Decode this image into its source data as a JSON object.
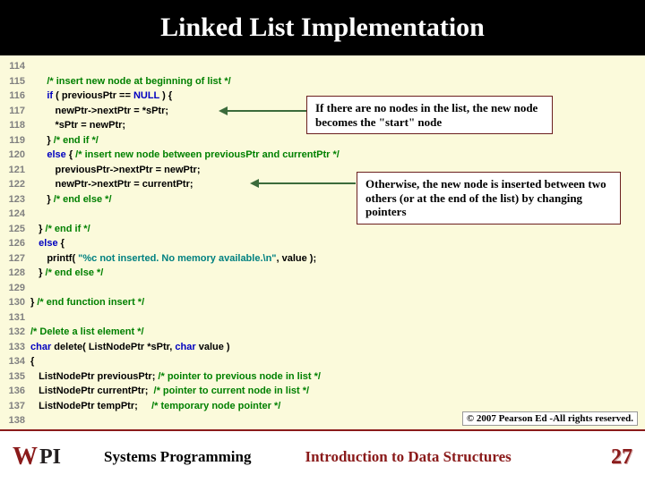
{
  "title": "Linked List Implementation",
  "line_start": 114,
  "line_end": 138,
  "code_lines": [
    {
      "ind": 0,
      "parts": [
        {
          "t": "plain",
          "v": ""
        }
      ]
    },
    {
      "ind": 6,
      "parts": [
        {
          "t": "c",
          "v": "/* insert new node at beginning of list */"
        }
      ]
    },
    {
      "ind": 6,
      "parts": [
        {
          "t": "k",
          "v": "if"
        },
        {
          "t": "plain",
          "v": " ( previousPtr == "
        },
        {
          "t": "k",
          "v": "NULL"
        },
        {
          "t": "plain",
          "v": " ) {"
        }
      ]
    },
    {
      "ind": 9,
      "parts": [
        {
          "t": "plain",
          "v": "newPtr->nextPtr = *sPtr;"
        }
      ]
    },
    {
      "ind": 9,
      "parts": [
        {
          "t": "plain",
          "v": "*sPtr = newPtr;"
        }
      ]
    },
    {
      "ind": 6,
      "parts": [
        {
          "t": "plain",
          "v": "} "
        },
        {
          "t": "c",
          "v": "/* end if */"
        }
      ]
    },
    {
      "ind": 6,
      "parts": [
        {
          "t": "k",
          "v": "else"
        },
        {
          "t": "plain",
          "v": " { "
        },
        {
          "t": "c",
          "v": "/* insert new node between previousPtr and currentPtr */"
        }
      ]
    },
    {
      "ind": 9,
      "parts": [
        {
          "t": "plain",
          "v": "previousPtr->nextPtr = newPtr;"
        }
      ]
    },
    {
      "ind": 9,
      "parts": [
        {
          "t": "plain",
          "v": "newPtr->nextPtr = currentPtr;"
        }
      ]
    },
    {
      "ind": 6,
      "parts": [
        {
          "t": "plain",
          "v": "} "
        },
        {
          "t": "c",
          "v": "/* end else */"
        }
      ]
    },
    {
      "ind": 0,
      "parts": [
        {
          "t": "plain",
          "v": ""
        }
      ]
    },
    {
      "ind": 3,
      "parts": [
        {
          "t": "plain",
          "v": "} "
        },
        {
          "t": "c",
          "v": "/* end if */"
        }
      ]
    },
    {
      "ind": 3,
      "parts": [
        {
          "t": "k",
          "v": "else"
        },
        {
          "t": "plain",
          "v": " {"
        }
      ]
    },
    {
      "ind": 6,
      "parts": [
        {
          "t": "plain",
          "v": "printf( "
        },
        {
          "t": "s",
          "v": "\"%c not inserted. No memory available.\\n\""
        },
        {
          "t": "plain",
          "v": ", value );"
        }
      ]
    },
    {
      "ind": 3,
      "parts": [
        {
          "t": "plain",
          "v": "} "
        },
        {
          "t": "c",
          "v": "/* end else */"
        }
      ]
    },
    {
      "ind": 0,
      "parts": [
        {
          "t": "plain",
          "v": ""
        }
      ]
    },
    {
      "ind": 0,
      "parts": [
        {
          "t": "plain",
          "v": "} "
        },
        {
          "t": "c",
          "v": "/* end function insert */"
        }
      ]
    },
    {
      "ind": 0,
      "parts": [
        {
          "t": "plain",
          "v": ""
        }
      ]
    },
    {
      "ind": 0,
      "parts": [
        {
          "t": "c",
          "v": "/* Delete a list element */"
        }
      ]
    },
    {
      "ind": 0,
      "parts": [
        {
          "t": "k",
          "v": "char"
        },
        {
          "t": "plain",
          "v": " delete( ListNodePtr *sPtr, "
        },
        {
          "t": "k",
          "v": "char"
        },
        {
          "t": "plain",
          "v": " value )"
        }
      ]
    },
    {
      "ind": 0,
      "parts": [
        {
          "t": "plain",
          "v": "{"
        }
      ]
    },
    {
      "ind": 3,
      "parts": [
        {
          "t": "plain",
          "v": "ListNodePtr previousPtr; "
        },
        {
          "t": "c",
          "v": "/* pointer to previous node in list */"
        }
      ]
    },
    {
      "ind": 3,
      "parts": [
        {
          "t": "plain",
          "v": "ListNodePtr currentPtr;  "
        },
        {
          "t": "c",
          "v": "/* pointer to current node in list */"
        }
      ]
    },
    {
      "ind": 3,
      "parts": [
        {
          "t": "plain",
          "v": "ListNodePtr tempPtr;     "
        },
        {
          "t": "c",
          "v": "/* temporary node pointer */"
        }
      ]
    },
    {
      "ind": 0,
      "parts": [
        {
          "t": "plain",
          "v": ""
        }
      ]
    }
  ],
  "callout1": "If there are no nodes in the list, the new node becomes the \"start\" node",
  "callout2": "Otherwise, the new node is inserted between two others (or at the end of the list) by changing pointers",
  "copyright": "© 2007 Pearson Ed -All rights reserved.",
  "footer_left": "Systems Programming",
  "footer_mid": "Introduction to Data Structures",
  "page_num": "27",
  "colors": {
    "title_bg": "#000000",
    "title_fg": "#ffffff",
    "code_bg": "#fbfadb",
    "comment": "#008000",
    "keyword": "#0000c0",
    "string": "#008080",
    "callout_border": "#6b1f1f",
    "accent": "#8a1a1a"
  }
}
